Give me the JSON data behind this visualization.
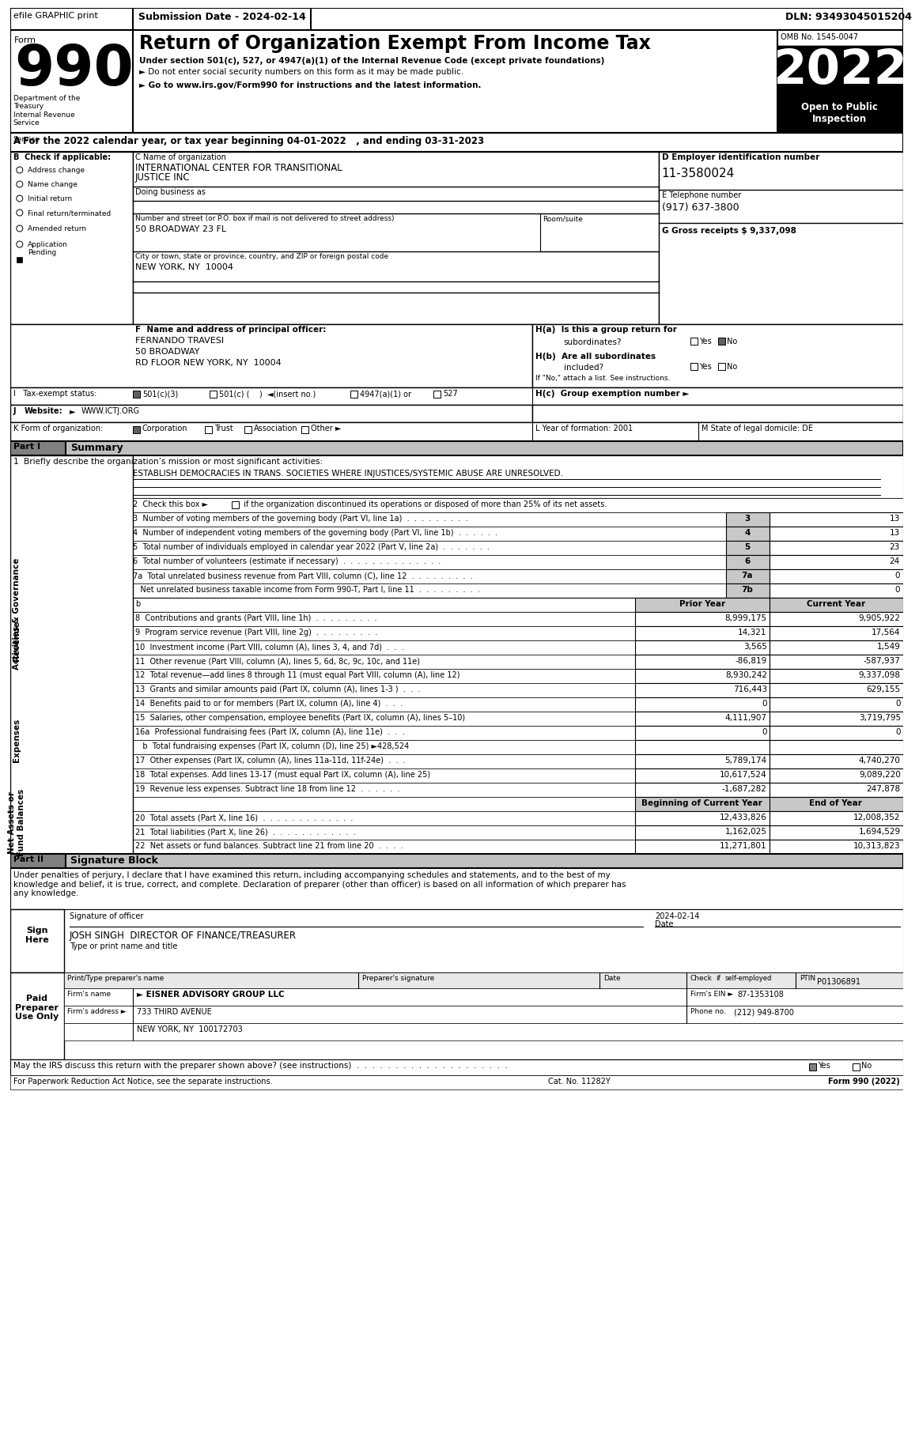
{
  "efile_header": "efile GRAPHIC print",
  "submission_date": "Submission Date - 2024-02-14",
  "dln": "DLN: 93493045015204",
  "form_label": "Form",
  "title": "Return of Organization Exempt From Income Tax",
  "subtitle1": "Under section 501(c), 527, or 4947(a)(1) of the Internal Revenue Code (except private foundations)",
  "subtitle2": "► Do not enter social security numbers on this form as it may be made public.",
  "subtitle3": "► Go to www.irs.gov/Form990 for instructions and the latest information.",
  "omb": "OMB No. 1545-0047",
  "year": "2022",
  "open_to_public": "Open to Public\nInspection",
  "dept": "Department of the\nTreasury\nInternal Revenue\nService",
  "tax_year_line": "A  For the 2022 calendar year, or tax year beginning 04-01-2022   , and ending 03-31-2023",
  "b_label": "B  Check if applicable:",
  "check_items": [
    "Address change",
    "Name change",
    "Initial return",
    "Final return/terminated",
    "Amended return",
    "Application\nPending"
  ],
  "c_label": "C Name of organization",
  "org_name1": "INTERNATIONAL CENTER FOR TRANSITIONAL",
  "org_name2": "JUSTICE INC",
  "dba_label": "Doing business as",
  "address_label": "Number and street (or P.O. box if mail is not delivered to street address)",
  "address": "50 BROADWAY 23 FL",
  "room_label": "Room/suite",
  "city_label": "City or town, state or province, country, and ZIP or foreign postal code",
  "city": "NEW YORK, NY  10004",
  "d_label": "D Employer identification number",
  "ein": "11-3580024",
  "e_label": "E Telephone number",
  "phone": "(917) 637-3800",
  "g_label": "G Gross receipts $ 9,337,098",
  "f_label": "F  Name and address of principal officer:",
  "officer_name": "FERNANDO TRAVESI",
  "officer_address1": "50 BROADWAY",
  "officer_address2": "RD FLOOR NEW YORK, NY  10004",
  "ha_label": "H(a)  Is this a group return for",
  "ha_text": "subordinates?",
  "hb_label": "H(b)  Are all subordinates",
  "hb_text": "included?",
  "hb_note": "If \"No,\" attach a list. See instructions.",
  "hc_label": "H(c)  Group exemption number ►",
  "i_label": "I   Tax-exempt status:",
  "j_label": "J   Website: ►",
  "j_bold": "Website:",
  "website": "WWW.ICTJ.ORG",
  "k_label": "K Form of organization:",
  "l_label": "L Year of formation: 2001",
  "m_label": "M State of legal domicile: DE",
  "part1_label": "Part I",
  "part1_title": "Summary",
  "line1_label": "1  Briefly describe the organization’s mission or most significant activities:",
  "mission": "ESTABLISH DEMOCRACIES IN TRANS. SOCIETIES WHERE INJUSTICES/SYSTEMIC ABUSE ARE UNRESOLVED.",
  "line2_text": "2  Check this box ►      if the organization discontinued its operations or disposed of more than 25% of its net assets.",
  "line3_label": "3  Number of voting members of the governing body (Part VI, line 1a)  .  .  .  .  .  .  .  .  .",
  "line4_label": "4  Number of independent voting members of the governing body (Part VI, line 1b)  .  .  .  .  .  .",
  "line5_label": "5  Total number of individuals employed in calendar year 2022 (Part V, line 2a)  .  .  .  .  .  .  .",
  "line6_label": "6  Total number of volunteers (estimate if necessary)  .  .  .  .  .  .  .  .  .  .  .  .  .  .",
  "line7a_label": "7a  Total unrelated business revenue from Part VIII, column (C), line 12  .  .  .  .  .  .  .  .  .",
  "line7b_label": "   Net unrelated business taxable income from Form 990-T, Part I, line 11  .  .  .  .  .  .  .  .  .",
  "line3_num": "3",
  "line4_num": "4",
  "line5_num": "5",
  "line6_num": "6",
  "line7a_num": "7a",
  "line7b_num": "7b",
  "line3_val": "13",
  "line4_val": "13",
  "line5_val": "23",
  "line6_val": "24",
  "line7a_val": "0",
  "line7b_val": "0",
  "prior_year": "Prior Year",
  "current_year": "Current Year",
  "activities_label": "Activities & Governance",
  "revenue_label": "Revenue",
  "expenses_label": "Expenses",
  "net_assets_label": "Net Assets or\nFund Balances",
  "line8_label": "8  Contributions and grants (Part VIII, line 1h)  .  .  .  .  .  .  .  .  .",
  "line9_label": "9  Program service revenue (Part VIII, line 2g)  .  .  .  .  .  .  .  .  .",
  "line10_label": "10  Investment income (Part VIII, column (A), lines 3, 4, and 7d)  .  .  .",
  "line11_label": "11  Other revenue (Part VIII, column (A), lines 5, 6d, 8c, 9c, 10c, and 11e)",
  "line12_label": "12  Total revenue—add lines 8 through 11 (must equal Part VIII, column (A), line 12)",
  "line13_label": "13  Grants and similar amounts paid (Part IX, column (A), lines 1-3 )  .  .  .",
  "line14_label": "14  Benefits paid to or for members (Part IX, column (A), line 4)  .  .  .",
  "line15_label": "15  Salaries, other compensation, employee benefits (Part IX, column (A), lines 5–10)",
  "line16a_label": "16a  Professional fundraising fees (Part IX, column (A), line 11e)  .  .  .",
  "line16b_label": "   b  Total fundraising expenses (Part IX, column (D), line 25) ►428,524",
  "line17_label": "17  Other expenses (Part IX, column (A), lines 11a-11d, 11f-24e)  .  .  .",
  "line18_label": "18  Total expenses. Add lines 13-17 (must equal Part IX, column (A), line 25)",
  "line19_label": "19  Revenue less expenses. Subtract line 18 from line 12  .  .  .  .  .  .",
  "line8_prior": "8,999,175",
  "line9_prior": "14,321",
  "line10_prior": "3,565",
  "line11_prior": "-86,819",
  "line12_prior": "8,930,242",
  "line13_prior": "716,443",
  "line14_prior": "0",
  "line15_prior": "4,111,907",
  "line16a_prior": "0",
  "line17_prior": "5,789,174",
  "line18_prior": "10,617,524",
  "line19_prior": "-1,687,282",
  "line8_curr": "9,905,922",
  "line9_curr": "17,564",
  "line10_curr": "1,549",
  "line11_curr": "-587,937",
  "line12_curr": "9,337,098",
  "line13_curr": "629,155",
  "line14_curr": "0",
  "line15_curr": "3,719,795",
  "line16a_curr": "0",
  "line17_curr": "4,740,270",
  "line18_curr": "9,089,220",
  "line19_curr": "247,878",
  "boc_header": "Beginning of Current Year",
  "eoy_header": "End of Year",
  "line20_label": "20  Total assets (Part X, line 16)  .  .  .  .  .  .  .  .  .  .  .  .  .",
  "line21_label": "21  Total liabilities (Part X, line 26)  .  .  .  .  .  .  .  .  .  .  .  .",
  "line22_label": "22  Net assets or fund balances. Subtract line 21 from line 20  .  .  .  .",
  "line20_boc": "12,433,826",
  "line21_boc": "1,162,025",
  "line22_boc": "11,271,801",
  "line20_eoy": "12,008,352",
  "line21_eoy": "1,694,529",
  "line22_eoy": "10,313,823",
  "part2_label": "Part II",
  "part2_title": "Signature Block",
  "sig_text": "Under penalties of perjury, I declare that I have examined this return, including accompanying schedules and statements, and to the best of my\nknowledge and belief, it is true, correct, and complete. Declaration of preparer (other than officer) is based on all information of which preparer has\nany knowledge.",
  "sign_here": "Sign\nHere",
  "sig_date_val": "2024-02-14",
  "sig_officer_label": "Signature of officer",
  "sig_date_label": "Date",
  "sig_officer_name": "JOSH SINGH  DIRECTOR OF FINANCE/TREASURER",
  "sig_officer_title": "Type or print name and title",
  "paid_preparer": "Paid\nPreparer\nUse Only",
  "print_name_label": "Print/Type preparer's name",
  "prep_sig_label": "Preparer's signature",
  "date_label": "Date",
  "check_label": "Check",
  "check_if": "if",
  "self_employed": "self-employed",
  "ptin_label": "PTIN",
  "ptin_value": "P01306891",
  "firm_name_label": "Firm's name",
  "firm_name": "► EISNER ADVISORY GROUP LLC",
  "firm_ein_label": "Firm's EIN ►",
  "firm_ein": "87-1353108",
  "firm_address_label": "Firm's address ►",
  "firm_address": "733 THIRD AVENUE",
  "firm_city": "NEW YORK, NY  100172703",
  "phone_no_label": "Phone no.",
  "phone_no": "(212) 949-8700",
  "may_discuss": "May the IRS discuss this return with the preparer shown above? (see instructions)  .  .  .  .  .  .  .  .  .  .  .  .  .  .  .  .  .  .  .  .",
  "paperwork_text": "For Paperwork Reduction Act Notice, see the separate instructions.",
  "cat_no": "Cat. No. 11282Y",
  "form_bottom": "Form 990 (2022)"
}
